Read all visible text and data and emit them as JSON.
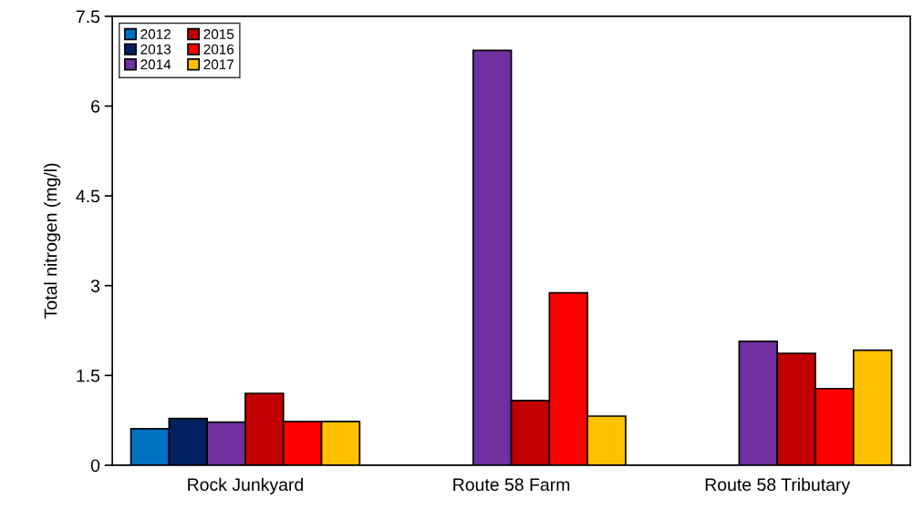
{
  "chart_data": {
    "type": "bar",
    "ylabel": "Total nitrogen (mg/l)",
    "categories": [
      "Rock Junkyard",
      "Route 58 Farm",
      "Route 58 Tributary"
    ],
    "series": [
      {
        "name": "2012",
        "color": "#0070c0",
        "values": [
          0.61,
          null,
          null
        ]
      },
      {
        "name": "2013",
        "color": "#002060",
        "values": [
          0.78,
          null,
          null
        ]
      },
      {
        "name": "2014",
        "color": "#7030a0",
        "values": [
          0.72,
          6.93,
          2.07
        ]
      },
      {
        "name": "2015",
        "color": "#c00000",
        "values": [
          1.2,
          1.08,
          1.87
        ]
      },
      {
        "name": "2016",
        "color": "#ff0000",
        "values": [
          0.73,
          2.88,
          1.28
        ]
      },
      {
        "name": "2017",
        "color": "#ffc000",
        "values": [
          0.73,
          0.82,
          1.92
        ]
      }
    ],
    "ylim": [
      0,
      7.5
    ],
    "yticks": [
      0,
      1.5,
      3,
      4.5,
      6,
      7.5
    ],
    "grid": false,
    "legend": "top left"
  }
}
